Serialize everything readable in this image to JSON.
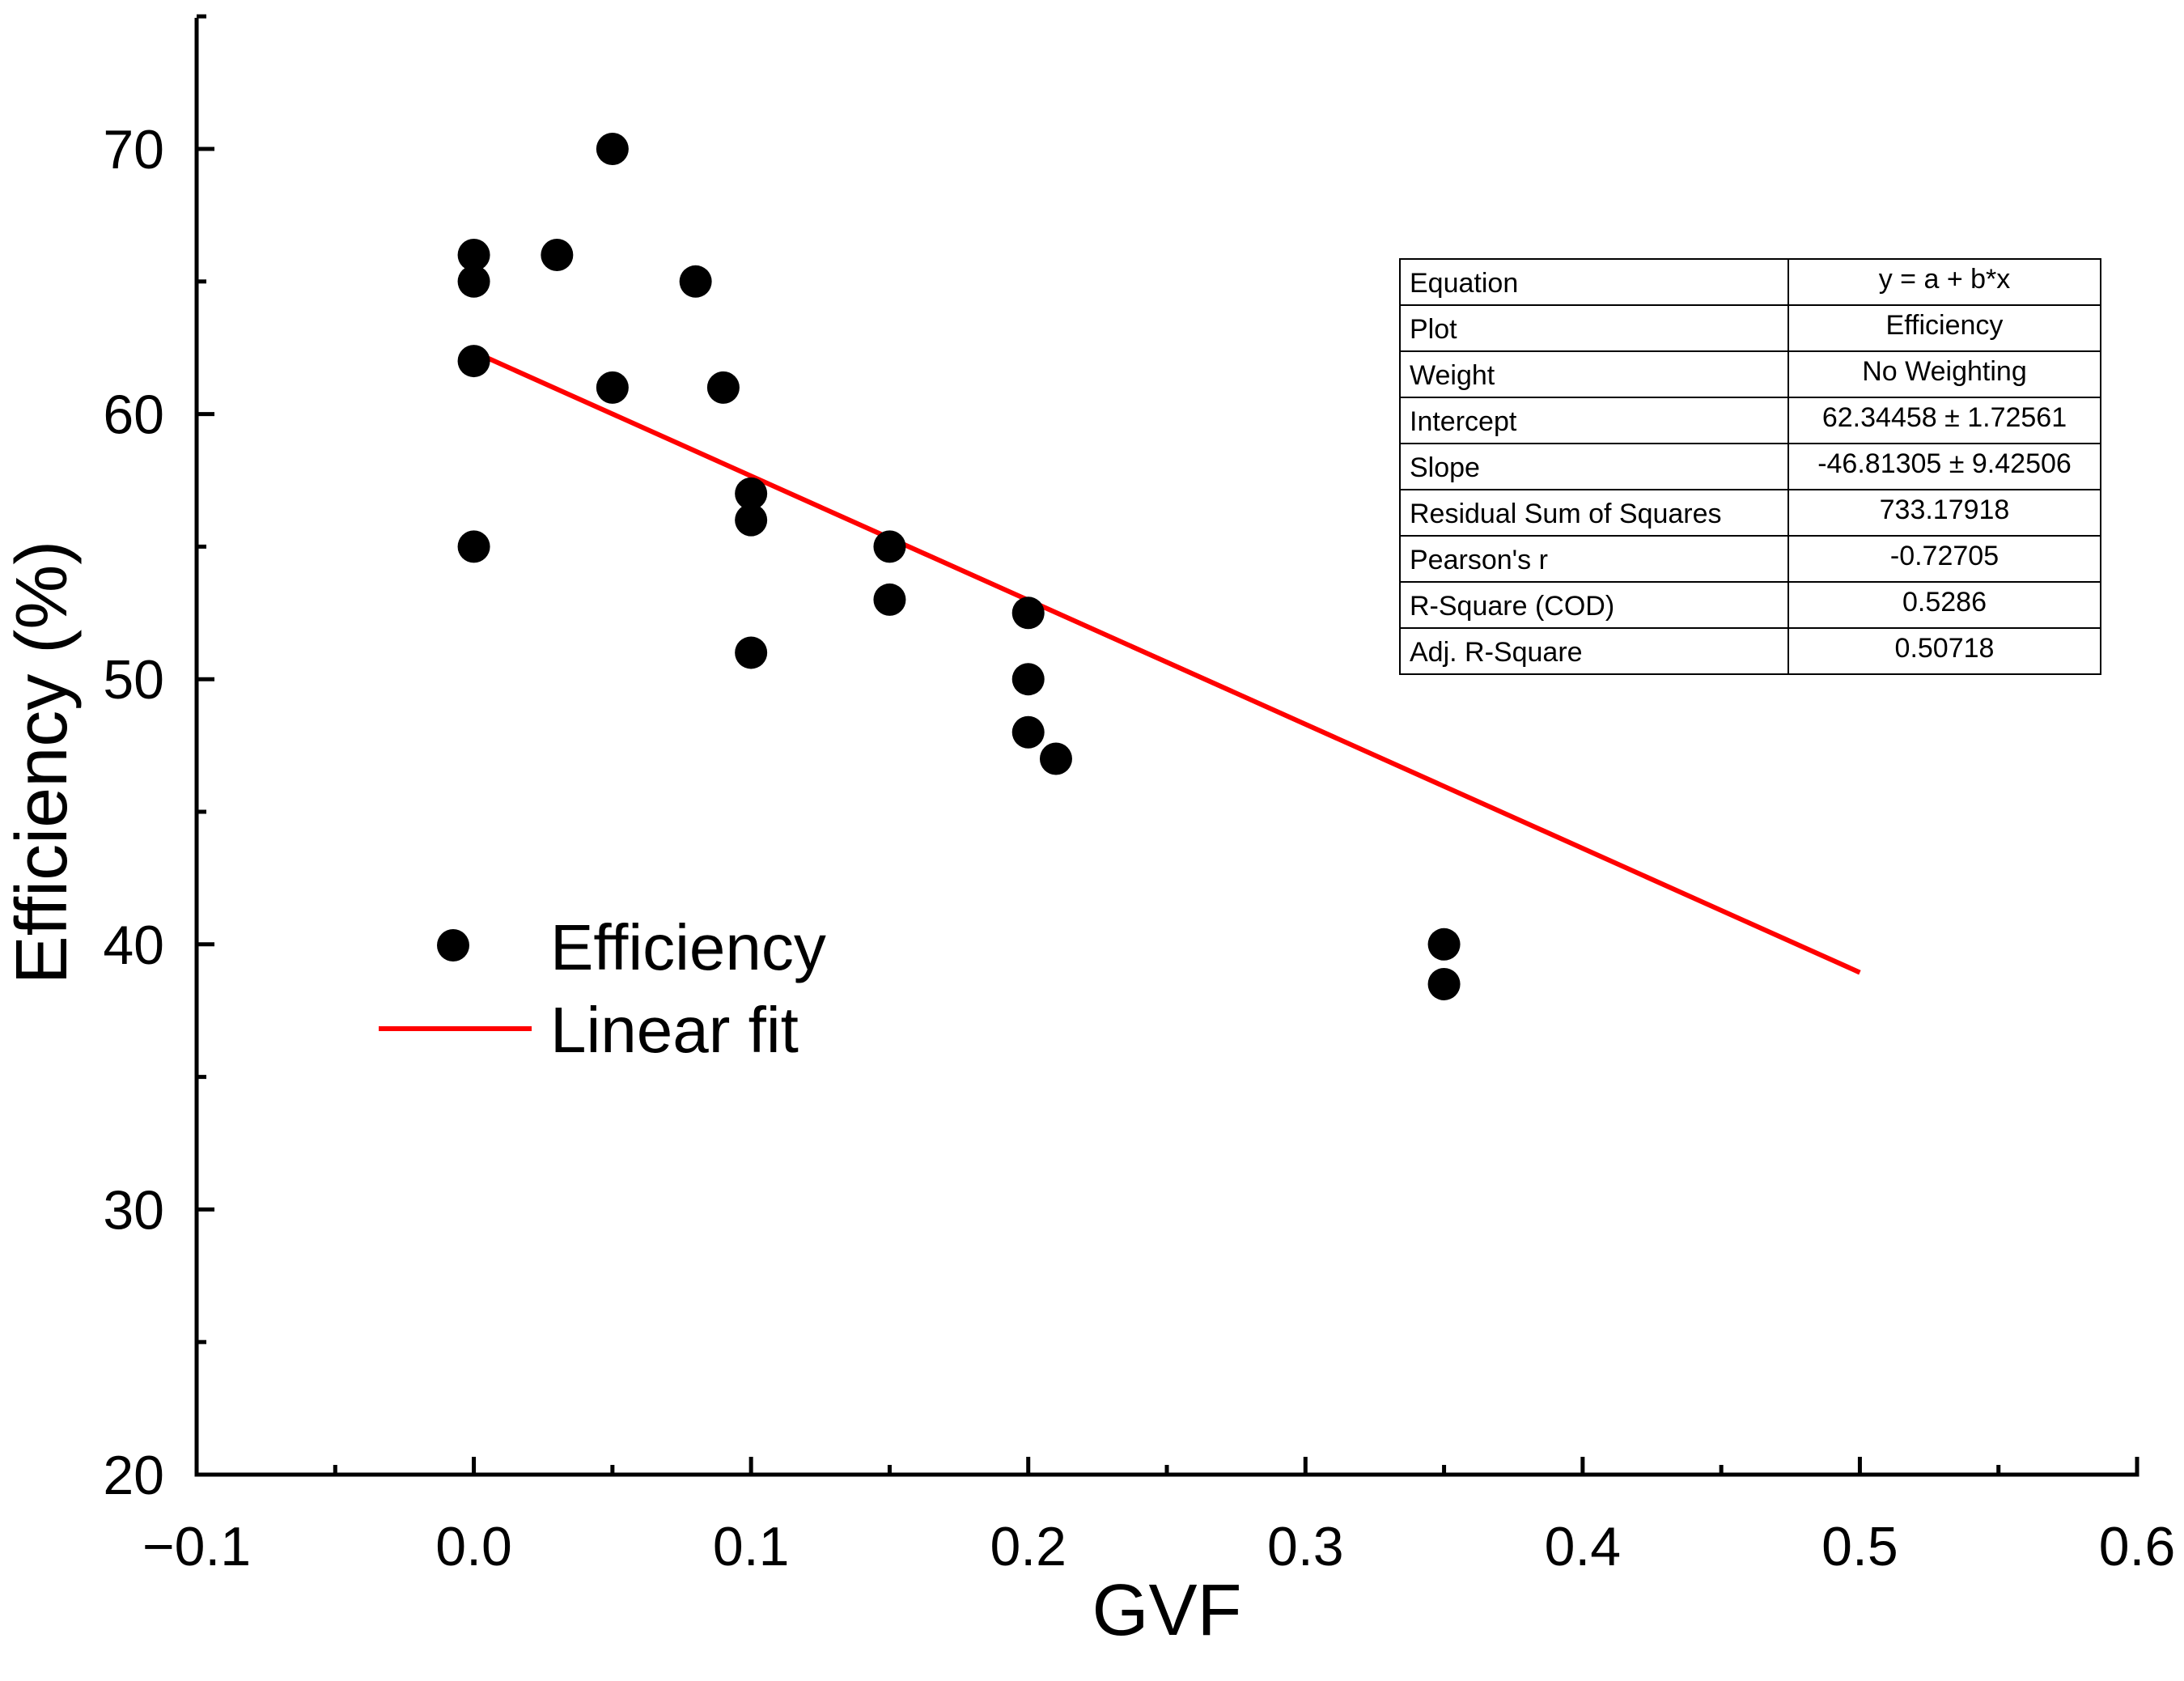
{
  "chart_data": {
    "type": "scatter",
    "title": "",
    "xlabel": "GVF",
    "ylabel": "Efficiency (%)",
    "xlim": [
      -0.1,
      0.6
    ],
    "ylim": [
      20,
      75
    ],
    "x_ticks": [
      -0.1,
      0.0,
      0.1,
      0.2,
      0.3,
      0.4,
      0.5,
      0.6
    ],
    "x_tick_labels": [
      "−0.1",
      "0.0",
      "0.1",
      "0.2",
      "0.3",
      "0.4",
      "0.5",
      "0.6"
    ],
    "x_minor_ticks": [
      -0.05,
      0.05,
      0.15,
      0.25,
      0.35,
      0.45,
      0.55
    ],
    "y_ticks": [
      20,
      30,
      40,
      50,
      60,
      70
    ],
    "y_tick_labels": [
      "20",
      "30",
      "40",
      "50",
      "60",
      "70"
    ],
    "y_minor_ticks": [
      25,
      35,
      45,
      55,
      65
    ],
    "grid": false,
    "legend_position": "center-left",
    "series": [
      {
        "name": "Efficiency",
        "kind": "scatter",
        "color": "#000000",
        "points": [
          {
            "x": 0.0,
            "y": 66
          },
          {
            "x": 0.0,
            "y": 65
          },
          {
            "x": 0.0,
            "y": 62
          },
          {
            "x": 0.0,
            "y": 55
          },
          {
            "x": 0.03,
            "y": 66
          },
          {
            "x": 0.05,
            "y": 70
          },
          {
            "x": 0.05,
            "y": 61
          },
          {
            "x": 0.08,
            "y": 65
          },
          {
            "x": 0.09,
            "y": 61
          },
          {
            "x": 0.1,
            "y": 57
          },
          {
            "x": 0.1,
            "y": 56
          },
          {
            "x": 0.1,
            "y": 51
          },
          {
            "x": 0.15,
            "y": 55
          },
          {
            "x": 0.15,
            "y": 53
          },
          {
            "x": 0.2,
            "y": 52.5
          },
          {
            "x": 0.2,
            "y": 50
          },
          {
            "x": 0.2,
            "y": 48
          },
          {
            "x": 0.21,
            "y": 47
          },
          {
            "x": 0.35,
            "y": 40
          },
          {
            "x": 0.35,
            "y": 38.5
          }
        ]
      },
      {
        "name": "Linear fit",
        "kind": "line",
        "color": "#ff0000",
        "intercept": 62.34458,
        "slope": -46.81305,
        "x_range": [
          0.0,
          0.5
        ]
      }
    ],
    "fit_table": [
      {
        "label": "Equation",
        "value": "y = a + b*x"
      },
      {
        "label": "Plot",
        "value": "Efficiency"
      },
      {
        "label": "Weight",
        "value": "No Weighting"
      },
      {
        "label": "Intercept",
        "value": "62.34458 ± 1.72561"
      },
      {
        "label": "Slope",
        "value": "-46.81305 ± 9.42506"
      },
      {
        "label": "Residual Sum of Squares",
        "value": "733.17918"
      },
      {
        "label": "Pearson's r",
        "value": "-0.72705"
      },
      {
        "label": "R-Square (COD)",
        "value": "0.5286"
      },
      {
        "label": "Adj. R-Square",
        "value": "0.50718"
      }
    ]
  }
}
